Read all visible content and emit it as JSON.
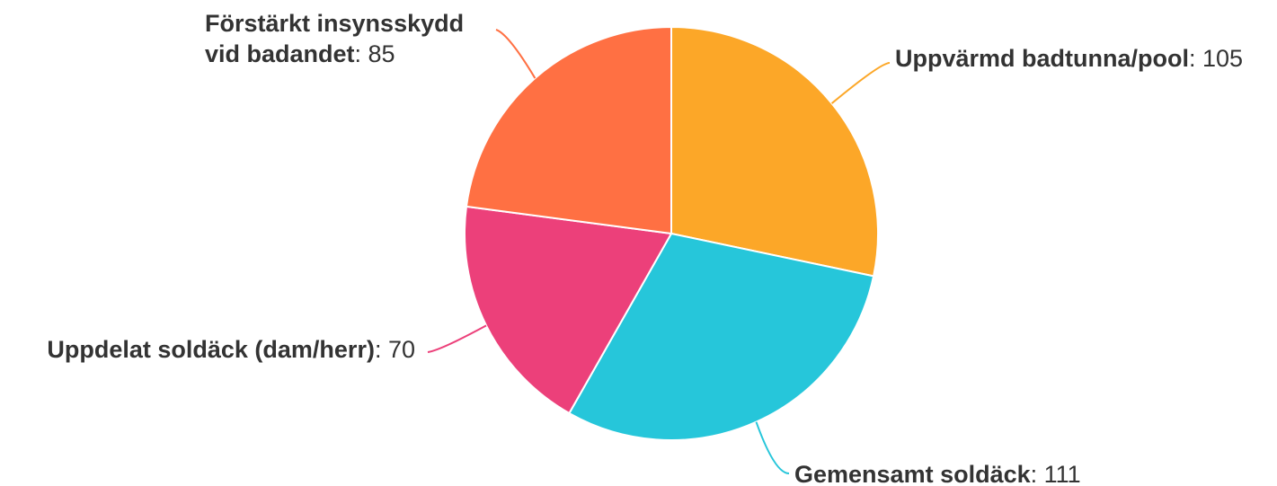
{
  "chart_data": {
    "type": "pie",
    "title": "",
    "slices": [
      {
        "label": "Uppvärmd badtunna/pool",
        "value": 105,
        "color": "#FCA728"
      },
      {
        "label": "Gemensamt soldäck",
        "value": 111,
        "color": "#26C6DA"
      },
      {
        "label": "Uppdelat soldäck (dam/herr)",
        "value": 70,
        "color": "#EC407A"
      },
      {
        "label": "Förstärkt insynsskydd vid badandet",
        "value": 85,
        "color": "#FF7043"
      }
    ]
  }
}
